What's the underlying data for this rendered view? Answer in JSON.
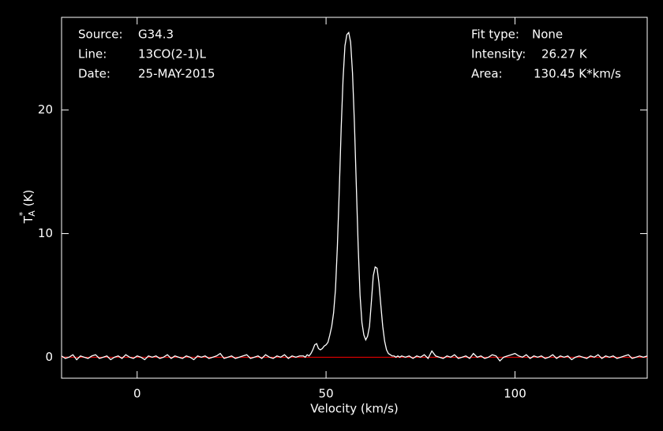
{
  "chart_data": {
    "type": "line",
    "info_left": [
      [
        "Source:",
        "G34.3"
      ],
      [
        "Line:",
        "13CO(2-1)L"
      ],
      [
        "Date:",
        "25-MAY-2015"
      ]
    ],
    "info_right": [
      [
        "Fit type:",
        "None"
      ],
      [
        "Intensity:",
        "26.27 K"
      ],
      [
        "Area:",
        "130.45 K*km/s"
      ]
    ],
    "xlabel": "Velocity (km/s)",
    "ylabel": {
      "main": "T",
      "sup": "*",
      "sub": "A",
      "unit": "(K)"
    },
    "xlim": [
      -20,
      135
    ],
    "ylim": [
      -1.7,
      27.5
    ],
    "xticks": [
      0,
      50,
      100
    ],
    "yticks": [
      0,
      10,
      20
    ],
    "baseline": 0,
    "baseline_color": "#ff0000",
    "series": [
      {
        "color": "#ffffff",
        "x": [
          -20,
          -19,
          -18,
          -17,
          -16,
          -15,
          -14,
          -13,
          -12,
          -11,
          -10,
          -9,
          -8,
          -7,
          -6,
          -5,
          -4,
          -3,
          -2,
          -1,
          0,
          1,
          2,
          3,
          4,
          5,
          6,
          7,
          8,
          9,
          10,
          11,
          12,
          13,
          14,
          15,
          16,
          17,
          18,
          19,
          20,
          21,
          22,
          23,
          24,
          25,
          26,
          27,
          28,
          29,
          30,
          31,
          32,
          33,
          34,
          35,
          36,
          37,
          38,
          39,
          40,
          41,
          42,
          43,
          44,
          44.5,
          45,
          45.5,
          46,
          46.5,
          47,
          47.5,
          48,
          48.5,
          49,
          49.5,
          50,
          50.5,
          51,
          51.5,
          52,
          52.5,
          53,
          53.5,
          54,
          54.5,
          55,
          55.5,
          56,
          56.5,
          57,
          57.5,
          58,
          58.5,
          59,
          59.5,
          60,
          60.5,
          61,
          61.5,
          62,
          62.5,
          63,
          63.5,
          64,
          64.5,
          65,
          65.5,
          66,
          66.5,
          67,
          67.5,
          68,
          68.5,
          69,
          69.5,
          70,
          71,
          72,
          73,
          74,
          75,
          76,
          77,
          78,
          79,
          80,
          81,
          82,
          83,
          84,
          85,
          86,
          87,
          88,
          89,
          90,
          91,
          92,
          93,
          94,
          95,
          96,
          97,
          98,
          99,
          100,
          101,
          102,
          103,
          104,
          105,
          106,
          107,
          108,
          109,
          110,
          111,
          112,
          113,
          114,
          115,
          116,
          117,
          118,
          119,
          120,
          121,
          122,
          123,
          124,
          125,
          126,
          127,
          128,
          129,
          130,
          131,
          132,
          133,
          134,
          135
        ],
        "values": [
          0.1,
          -0.1,
          0.0,
          0.2,
          -0.2,
          0.1,
          0.0,
          -0.1,
          0.1,
          0.2,
          -0.1,
          0.0,
          0.1,
          -0.2,
          0.0,
          0.1,
          -0.1,
          0.2,
          0.0,
          -0.1,
          0.1,
          0.0,
          -0.2,
          0.1,
          0.0,
          0.1,
          -0.1,
          0.0,
          0.2,
          -0.1,
          0.1,
          0.0,
          -0.1,
          0.1,
          0.0,
          -0.2,
          0.1,
          0.0,
          0.1,
          -0.1,
          0.0,
          0.1,
          0.3,
          -0.1,
          0.0,
          0.1,
          -0.1,
          0.0,
          0.1,
          0.2,
          -0.1,
          0.0,
          0.1,
          -0.1,
          0.2,
          0.0,
          -0.1,
          0.1,
          0.0,
          0.2,
          -0.1,
          0.1,
          0.0,
          0.1,
          0.1,
          0.0,
          0.2,
          0.1,
          0.3,
          0.6,
          1.0,
          1.1,
          0.7,
          0.6,
          0.7,
          0.9,
          1.0,
          1.2,
          1.8,
          2.5,
          3.6,
          5.5,
          9.0,
          13.5,
          18.5,
          22.5,
          25.2,
          26.1,
          26.27,
          25.5,
          23.0,
          19.0,
          14.0,
          9.0,
          5.0,
          2.8,
          1.8,
          1.4,
          1.7,
          2.5,
          4.5,
          6.6,
          7.3,
          7.2,
          6.0,
          4.2,
          2.5,
          1.3,
          0.6,
          0.3,
          0.2,
          0.1,
          0.1,
          0.0,
          0.1,
          0.0,
          0.1,
          0.0,
          0.1,
          -0.1,
          0.1,
          0.0,
          0.2,
          -0.1,
          0.5,
          0.1,
          0.0,
          -0.1,
          0.1,
          0.0,
          0.2,
          -0.1,
          0.0,
          0.1,
          -0.1,
          0.3,
          0.0,
          0.1,
          -0.1,
          0.0,
          0.2,
          0.1,
          -0.3,
          0.0,
          0.1,
          0.2,
          0.3,
          0.1,
          0.0,
          0.2,
          -0.1,
          0.1,
          0.0,
          0.1,
          -0.1,
          0.0,
          0.2,
          -0.1,
          0.1,
          0.0,
          0.1,
          -0.2,
          0.0,
          0.1,
          0.0,
          -0.1,
          0.1,
          0.0,
          0.2,
          -0.1,
          0.1,
          0.0,
          0.1,
          -0.1,
          0.0,
          0.1,
          0.2,
          -0.1,
          0.0,
          0.1,
          0.0,
          0.1
        ]
      }
    ]
  }
}
